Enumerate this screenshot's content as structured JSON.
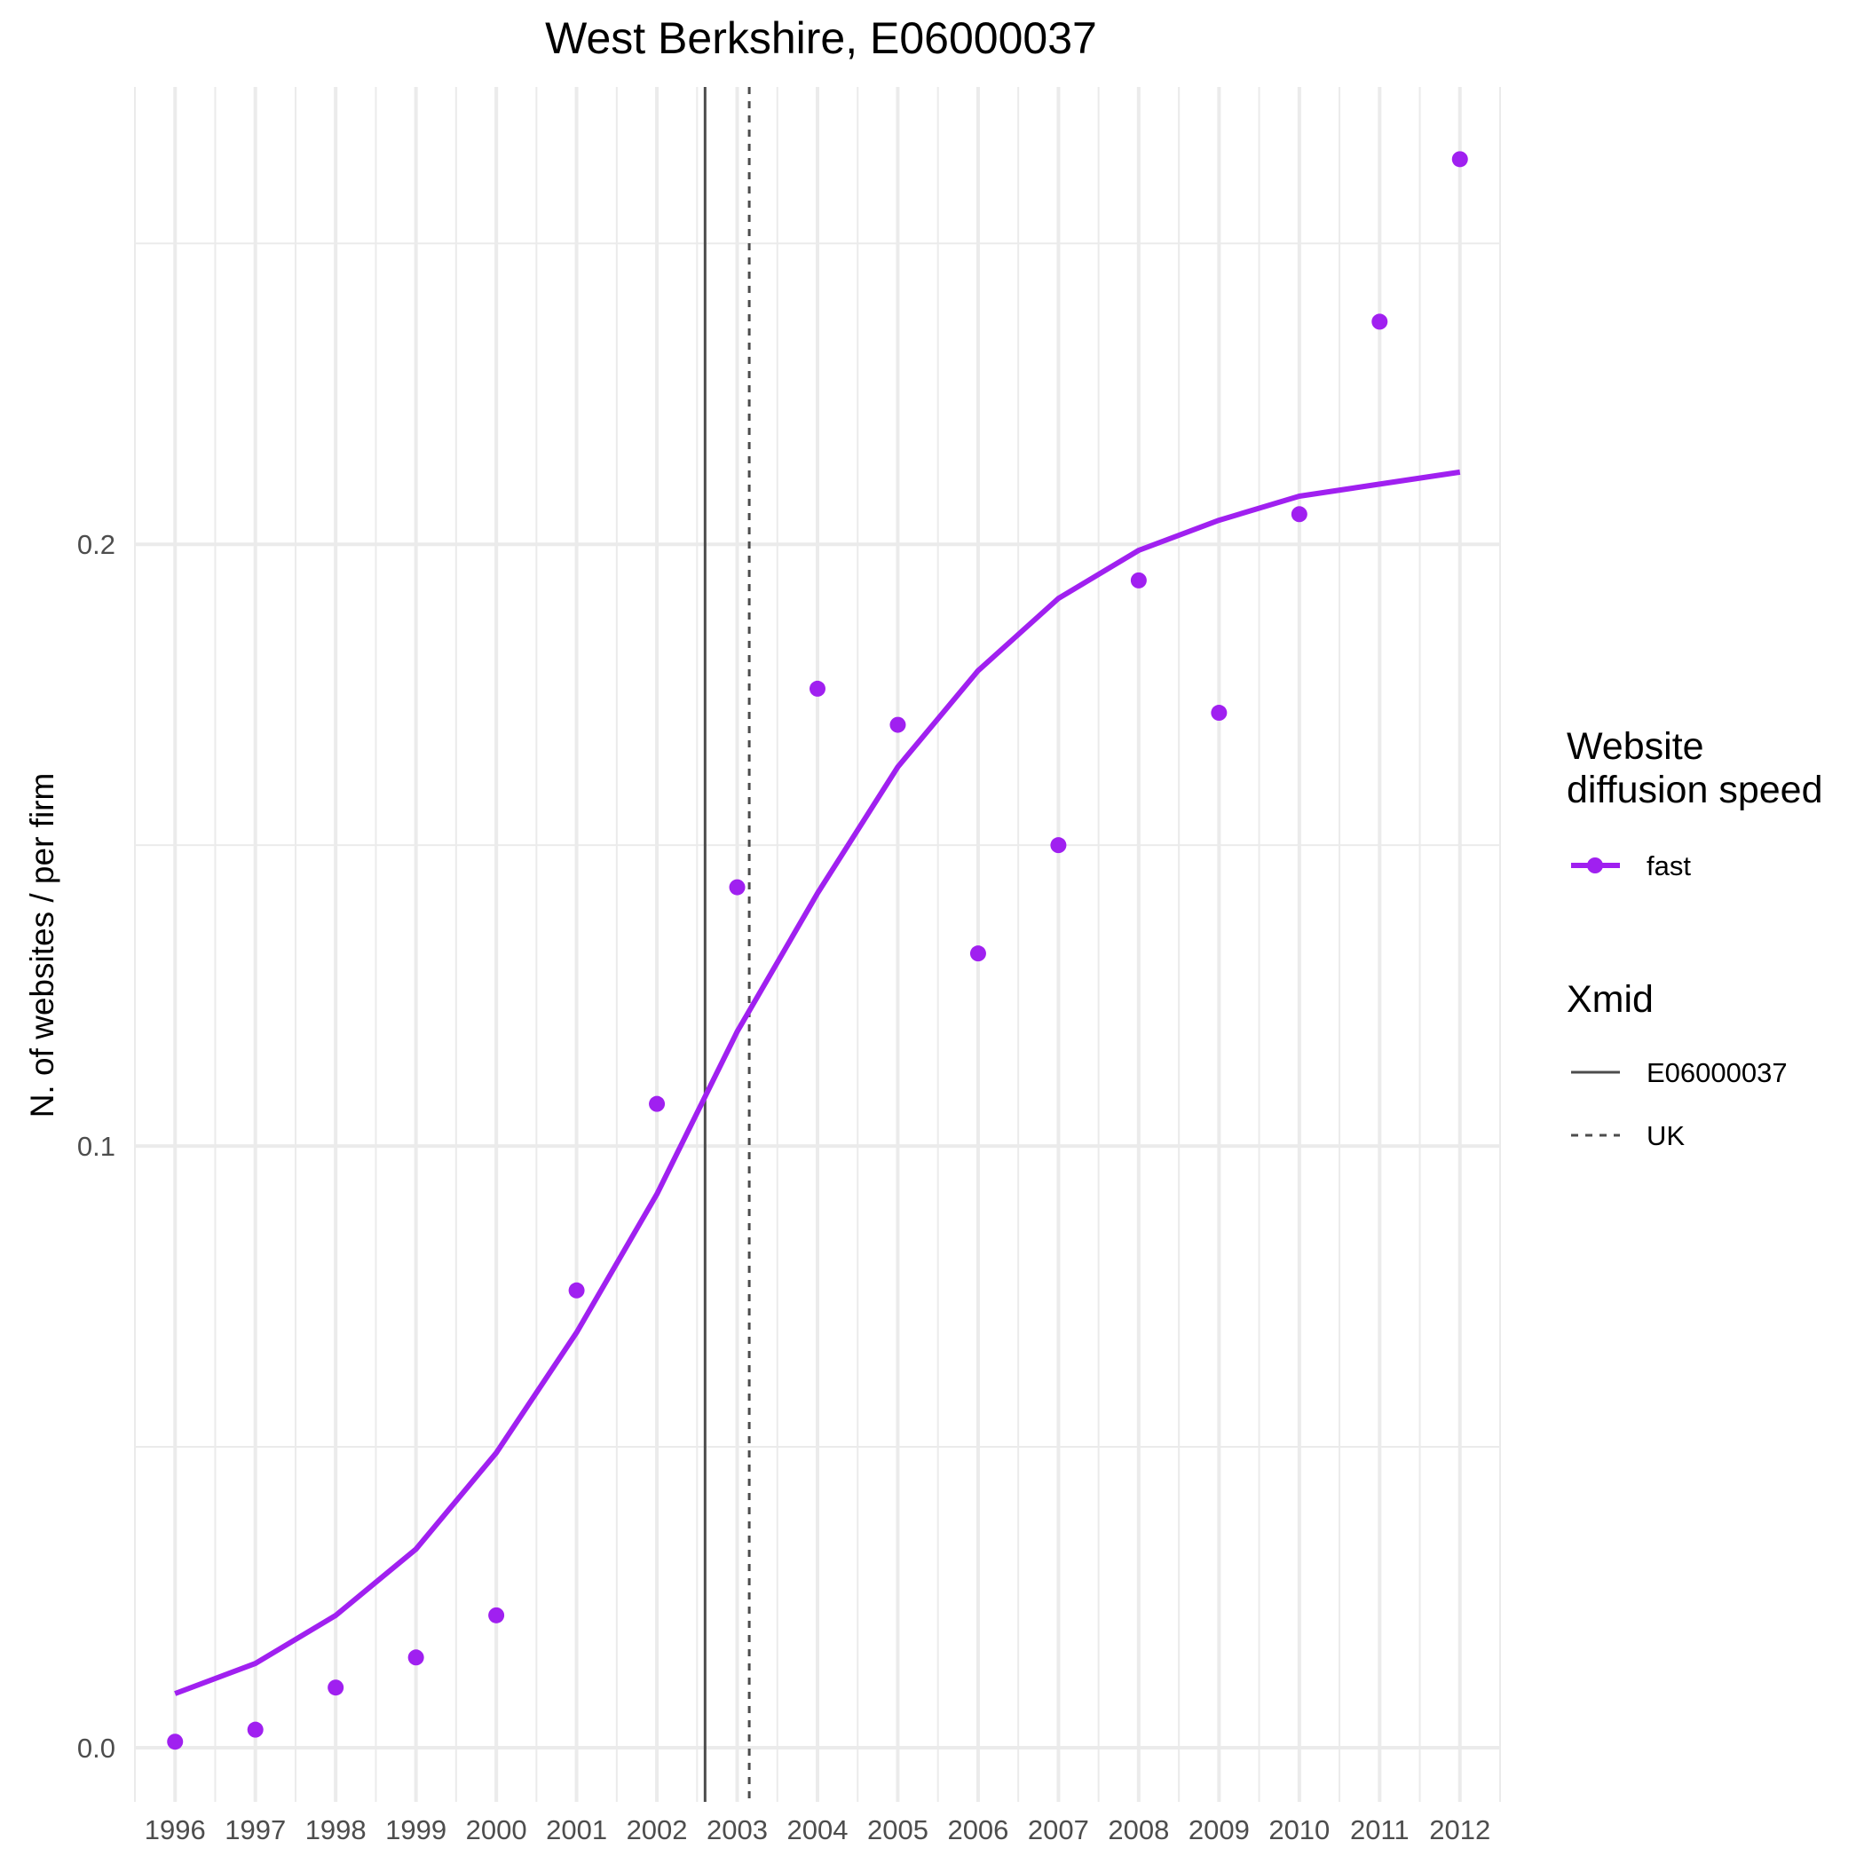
{
  "chart_data": {
    "type": "line",
    "title": "West Berkshire, E06000037",
    "xlabel": "",
    "ylabel": "N. of websites / per firm",
    "x": [
      1996,
      1997,
      1998,
      1999,
      2000,
      2001,
      2002,
      2003,
      2004,
      2005,
      2006,
      2007,
      2008,
      2009,
      2010,
      2011,
      2012
    ],
    "x_tick_labels": [
      "1996",
      "1997",
      "1998",
      "1999",
      "2000",
      "2001",
      "2002",
      "2003",
      "2004",
      "2005",
      "2006",
      "2007",
      "2008",
      "2009",
      "2010",
      "2011",
      "2012"
    ],
    "y_ticks": [
      0.0,
      0.1,
      0.2
    ],
    "y_tick_labels": [
      "0.0",
      "0.1",
      "0.2"
    ],
    "xlim": [
      1995.5,
      2012.5
    ],
    "ylim": [
      -0.009,
      0.276
    ],
    "grid": true,
    "legend_placement": "right",
    "series": [
      {
        "name": "fast",
        "points": [
          0.001,
          0.003,
          0.01,
          0.015,
          0.022,
          0.076,
          0.107,
          0.143,
          0.176,
          0.17,
          0.132,
          0.15,
          0.194,
          0.172,
          0.205,
          0.237,
          0.264
        ],
        "fitted": [
          0.009,
          0.014,
          0.022,
          0.033,
          0.049,
          0.069,
          0.092,
          0.119,
          0.142,
          0.163,
          0.179,
          0.191,
          0.199,
          0.204,
          0.208,
          0.21,
          0.212
        ],
        "color": "#a020f0"
      }
    ],
    "reference_lines": [
      {
        "name": "E06000037",
        "x": 2002.6,
        "style": "solid"
      },
      {
        "name": "UK",
        "x": 2003.15,
        "style": "dashed"
      }
    ],
    "legends": [
      {
        "title": "Website\ndiffusion speed",
        "entries": [
          {
            "label": "fast",
            "type": "line-point",
            "color": "#a020f0"
          }
        ]
      },
      {
        "title": "Xmid",
        "entries": [
          {
            "label": "E06000037",
            "type": "solid-line"
          },
          {
            "label": "UK",
            "type": "dashed-line"
          }
        ]
      }
    ],
    "colors": {
      "series": "#a020f0",
      "reference": "#4d4d4d",
      "grid": "#ebebeb"
    }
  }
}
